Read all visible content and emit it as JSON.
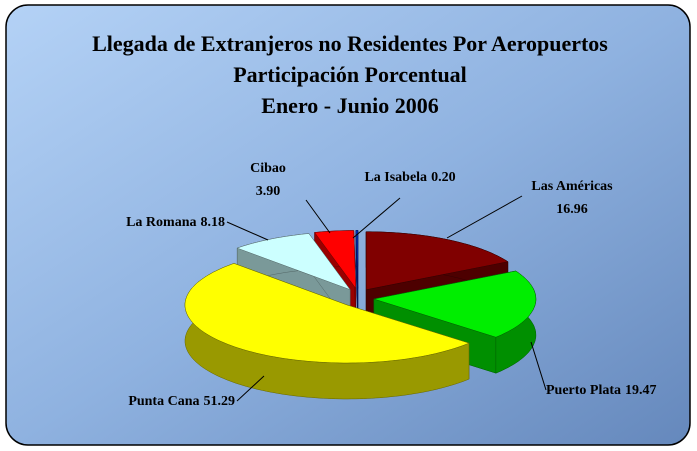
{
  "chart_data": {
    "type": "pie3d",
    "title": "Llegada de Extranjeros no Residentes Por Aeropuertos",
    "subtitle": [
      "Participación Porcentual",
      "Enero - Junio  2006"
    ],
    "categories": [
      "Las Américas",
      "Puerto Plata",
      "Punta Cana",
      "La Romana",
      "Cibao",
      "La Isabela"
    ],
    "values": [
      16.96,
      19.47,
      51.29,
      8.18,
      3.9,
      0.2
    ],
    "value_labels": [
      "16.96",
      "19.47",
      "51.29",
      "8.18",
      "3.90",
      "0.20"
    ],
    "colors": [
      "#800000",
      "#00ee00",
      "#ffff00",
      "#ccffff",
      "#ff0000",
      "#0033cc"
    ]
  }
}
